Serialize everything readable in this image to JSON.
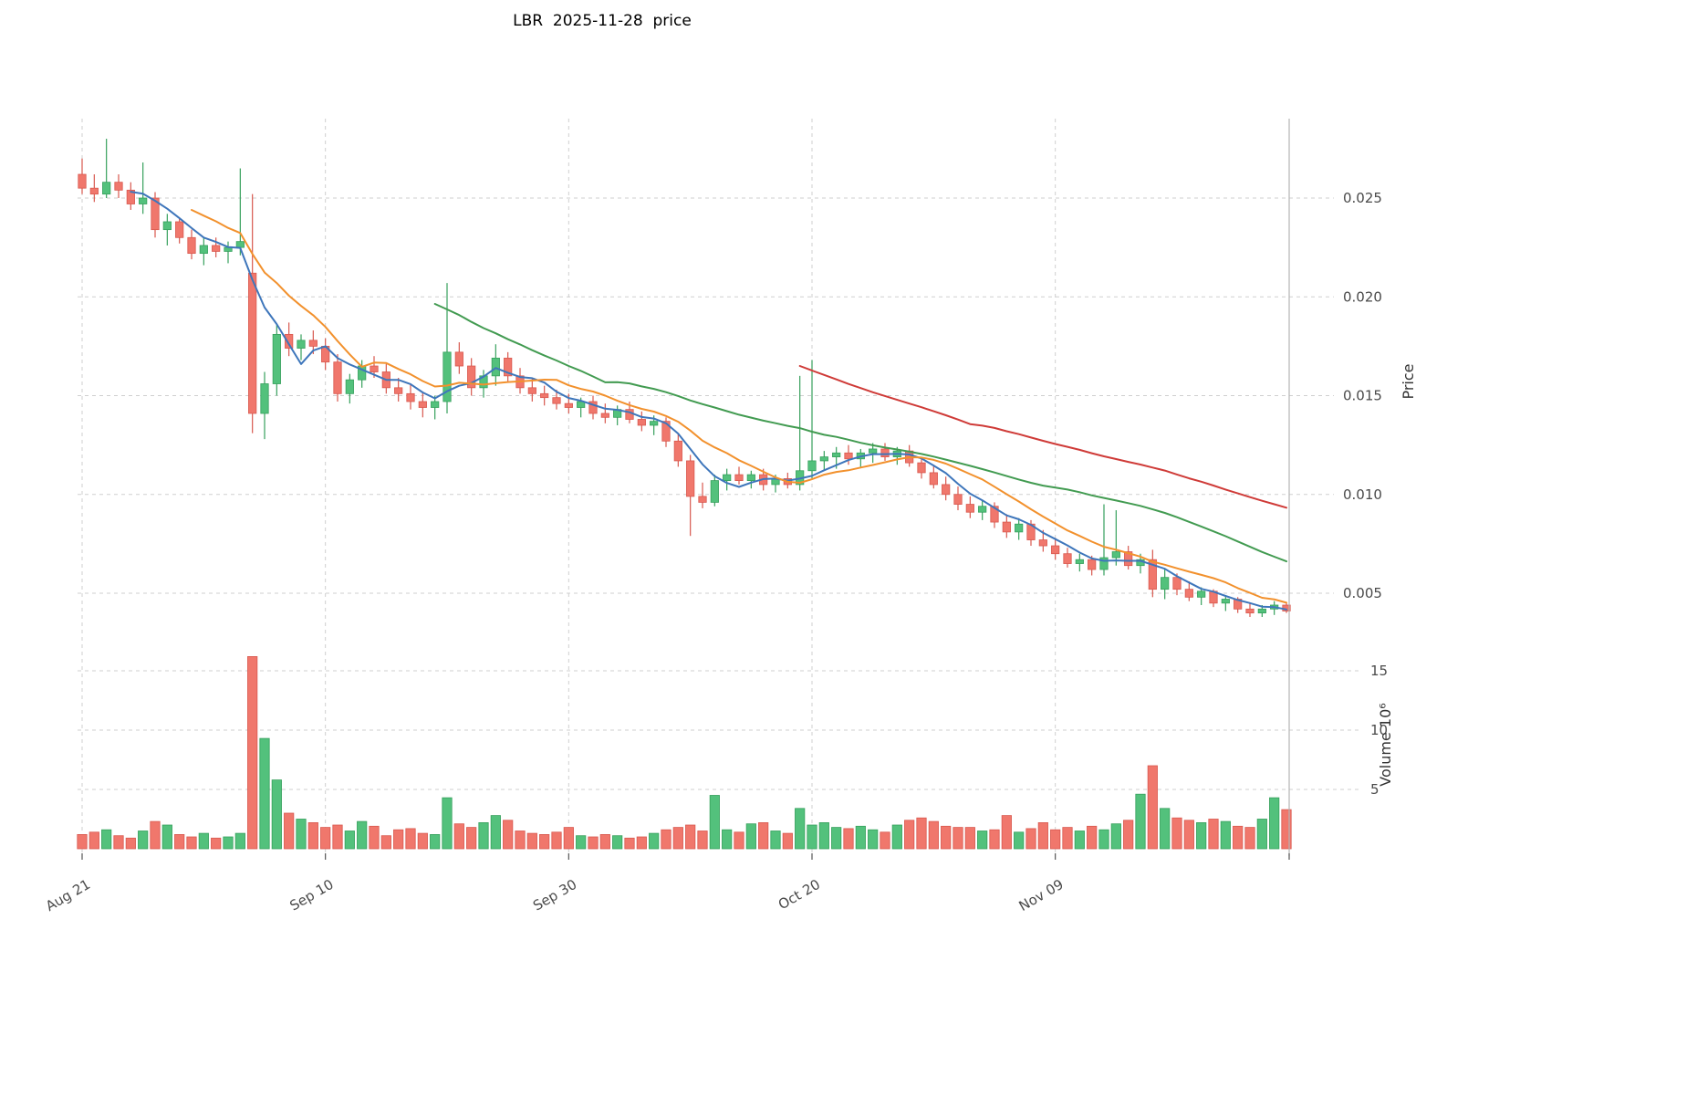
{
  "chart_data": {
    "type": "candlestick",
    "title": "LBR  2025-11-28  price",
    "ylabel_price": "Price",
    "ylabel_volume": "Volume 10⁶",
    "legend_position": "none",
    "grid": "dashed",
    "x_ticks": [
      {
        "index": 0,
        "label": "Aug 21"
      },
      {
        "index": 20,
        "label": "Sep 10"
      },
      {
        "index": 40,
        "label": "Sep 30"
      },
      {
        "index": 60,
        "label": "Oct 20"
      },
      {
        "index": 80,
        "label": "Nov 09"
      }
    ],
    "price_ticks": [
      {
        "value": 0.005,
        "label": "0.005"
      },
      {
        "value": 0.01,
        "label": "0.010"
      },
      {
        "value": 0.015,
        "label": "0.015"
      },
      {
        "value": 0.02,
        "label": "0.020"
      },
      {
        "value": 0.025,
        "label": "0.025"
      }
    ],
    "volume_ticks": [
      {
        "value": 5,
        "label": "5"
      },
      {
        "value": 10,
        "label": "10"
      },
      {
        "value": 15,
        "label": "15"
      }
    ],
    "price_axis_range": [
      0.0029,
      0.029
    ],
    "volume_axis_range": [
      0,
      17
    ],
    "moving_averages": [
      {
        "name": "MA5",
        "window": 5,
        "color": "#3e76bb"
      },
      {
        "name": "MA10",
        "window": 10,
        "color": "#f2912d"
      },
      {
        "name": "MA30",
        "window": 30,
        "color": "#429b51"
      },
      {
        "name": "MA60",
        "window": 60,
        "color": "#cf3b38"
      }
    ],
    "colors": {
      "up": "#53c17c",
      "down": "#f0776c",
      "up_edge": "#36a05c",
      "down_edge": "#d8584e",
      "grid": "#cfcfcf",
      "axis_text": "#4a4a4a",
      "spine": "#b3b3b3"
    },
    "ohlc": {
      "open": [
        0.0262,
        0.0255,
        0.0252,
        0.0258,
        0.0254,
        0.0247,
        0.025,
        0.0234,
        0.0238,
        0.023,
        0.0222,
        0.0226,
        0.0223,
        0.0225,
        0.0212,
        0.0141,
        0.0156,
        0.0181,
        0.0174,
        0.0178,
        0.0175,
        0.0167,
        0.0151,
        0.0158,
        0.0165,
        0.0162,
        0.0154,
        0.0151,
        0.0147,
        0.0144,
        0.0147,
        0.0172,
        0.0165,
        0.0154,
        0.016,
        0.0169,
        0.016,
        0.0154,
        0.0151,
        0.0149,
        0.0146,
        0.0144,
        0.0147,
        0.0141,
        0.0139,
        0.0143,
        0.0138,
        0.0135,
        0.0137,
        0.0127,
        0.0117,
        0.0099,
        0.0096,
        0.0107,
        0.011,
        0.0107,
        0.011,
        0.0105,
        0.0108,
        0.0105,
        0.0112,
        0.0117,
        0.0119,
        0.0121,
        0.0118,
        0.0121,
        0.0123,
        0.0119,
        0.0122,
        0.0116,
        0.0111,
        0.0105,
        0.01,
        0.0095,
        0.0091,
        0.0094,
        0.0086,
        0.0081,
        0.0085,
        0.0077,
        0.0074,
        0.007,
        0.0065,
        0.0067,
        0.0062,
        0.0068,
        0.0071,
        0.0064,
        0.0067,
        0.0052,
        0.0058,
        0.0052,
        0.0048,
        0.0051,
        0.0045,
        0.0047,
        0.0042,
        0.004,
        0.0042,
        0.0044
      ],
      "high": [
        0.027,
        0.0262,
        0.028,
        0.0262,
        0.0258,
        0.0268,
        0.0253,
        0.0242,
        0.024,
        0.0234,
        0.023,
        0.023,
        0.0228,
        0.0265,
        0.0252,
        0.0162,
        0.0186,
        0.0187,
        0.0181,
        0.0183,
        0.0179,
        0.0171,
        0.0161,
        0.0168,
        0.017,
        0.0166,
        0.0159,
        0.0156,
        0.0152,
        0.015,
        0.0207,
        0.0177,
        0.0169,
        0.0163,
        0.0176,
        0.0172,
        0.0164,
        0.0159,
        0.0155,
        0.0153,
        0.0151,
        0.0149,
        0.015,
        0.0146,
        0.0145,
        0.0147,
        0.0142,
        0.014,
        0.0139,
        0.0131,
        0.012,
        0.0106,
        0.011,
        0.0113,
        0.0114,
        0.0112,
        0.0113,
        0.011,
        0.0111,
        0.016,
        0.0168,
        0.0122,
        0.0124,
        0.0125,
        0.0123,
        0.0126,
        0.0126,
        0.0124,
        0.0125,
        0.0119,
        0.0115,
        0.0109,
        0.0104,
        0.0099,
        0.0097,
        0.0096,
        0.009,
        0.0088,
        0.0087,
        0.0082,
        0.0078,
        0.0073,
        0.007,
        0.0069,
        0.0095,
        0.0092,
        0.0074,
        0.007,
        0.0072,
        0.0062,
        0.006,
        0.0056,
        0.0053,
        0.0052,
        0.0049,
        0.0048,
        0.0045,
        0.0044,
        0.0046,
        0.0045
      ],
      "low": [
        0.0252,
        0.0248,
        0.025,
        0.025,
        0.0244,
        0.0242,
        0.023,
        0.0226,
        0.0227,
        0.0219,
        0.0216,
        0.022,
        0.0217,
        0.0221,
        0.0131,
        0.0128,
        0.015,
        0.017,
        0.0168,
        0.0171,
        0.0163,
        0.0147,
        0.0146,
        0.0154,
        0.0159,
        0.0151,
        0.0147,
        0.0143,
        0.0139,
        0.0138,
        0.0141,
        0.0161,
        0.015,
        0.0149,
        0.0155,
        0.0157,
        0.0151,
        0.0147,
        0.0145,
        0.0143,
        0.0141,
        0.0139,
        0.0138,
        0.0136,
        0.0135,
        0.0136,
        0.0132,
        0.013,
        0.0124,
        0.0114,
        0.0079,
        0.0093,
        0.0094,
        0.0102,
        0.0105,
        0.0103,
        0.0102,
        0.0101,
        0.0103,
        0.0102,
        0.0108,
        0.0112,
        0.0113,
        0.0115,
        0.0114,
        0.0116,
        0.0117,
        0.0115,
        0.0114,
        0.0108,
        0.0103,
        0.0097,
        0.0092,
        0.0088,
        0.0087,
        0.0083,
        0.0078,
        0.0077,
        0.0074,
        0.0071,
        0.0067,
        0.0063,
        0.0061,
        0.0059,
        0.0059,
        0.0064,
        0.0062,
        0.006,
        0.0048,
        0.0047,
        0.0049,
        0.0046,
        0.0044,
        0.0043,
        0.0041,
        0.004,
        0.0038,
        0.0038,
        0.0039,
        0.004
      ],
      "close": [
        0.0255,
        0.0252,
        0.0258,
        0.0254,
        0.0247,
        0.025,
        0.0234,
        0.0238,
        0.023,
        0.0222,
        0.0226,
        0.0223,
        0.0225,
        0.0228,
        0.0141,
        0.0156,
        0.0181,
        0.0174,
        0.0178,
        0.0175,
        0.0167,
        0.0151,
        0.0158,
        0.0165,
        0.0162,
        0.0154,
        0.0151,
        0.0147,
        0.0144,
        0.0147,
        0.0172,
        0.0165,
        0.0154,
        0.016,
        0.0169,
        0.016,
        0.0154,
        0.0151,
        0.0149,
        0.0146,
        0.0144,
        0.0147,
        0.0141,
        0.0139,
        0.0143,
        0.0138,
        0.0135,
        0.0137,
        0.0127,
        0.0117,
        0.0099,
        0.0096,
        0.0107,
        0.011,
        0.0107,
        0.011,
        0.0105,
        0.0108,
        0.0105,
        0.0112,
        0.0117,
        0.0119,
        0.0121,
        0.0118,
        0.0121,
        0.0123,
        0.0119,
        0.0122,
        0.0116,
        0.0111,
        0.0105,
        0.01,
        0.0095,
        0.0091,
        0.0094,
        0.0086,
        0.0081,
        0.0085,
        0.0077,
        0.0074,
        0.007,
        0.0065,
        0.0067,
        0.0062,
        0.0068,
        0.0071,
        0.0064,
        0.0067,
        0.0052,
        0.0058,
        0.0052,
        0.0048,
        0.0051,
        0.0045,
        0.0047,
        0.0042,
        0.004,
        0.0042,
        0.0044,
        0.0041
      ]
    },
    "volume": [
      1.2,
      1.4,
      1.6,
      1.1,
      0.9,
      1.5,
      2.3,
      2.0,
      1.2,
      1.0,
      1.3,
      0.9,
      1.0,
      1.3,
      16.2,
      9.3,
      5.8,
      3.0,
      2.5,
      2.2,
      1.8,
      2.0,
      1.5,
      2.3,
      1.9,
      1.1,
      1.6,
      1.7,
      1.3,
      1.2,
      4.3,
      2.1,
      1.8,
      2.2,
      2.8,
      2.4,
      1.5,
      1.3,
      1.2,
      1.4,
      1.8,
      1.1,
      1.0,
      1.2,
      1.1,
      0.9,
      1.0,
      1.3,
      1.6,
      1.8,
      2.0,
      1.5,
      4.5,
      1.6,
      1.4,
      2.1,
      2.2,
      1.5,
      1.3,
      3.4,
      2.0,
      2.2,
      1.8,
      1.7,
      1.9,
      1.6,
      1.4,
      2.0,
      2.4,
      2.6,
      2.3,
      1.9,
      1.8,
      1.8,
      1.5,
      1.6,
      2.8,
      1.4,
      1.7,
      2.2,
      1.6,
      1.8,
      1.5,
      1.9,
      1.6,
      2.1,
      2.4,
      4.6,
      7.0,
      3.4,
      2.6,
      2.4,
      2.2,
      2.5,
      2.3,
      1.9,
      1.8,
      2.5,
      4.3,
      3.3
    ]
  }
}
